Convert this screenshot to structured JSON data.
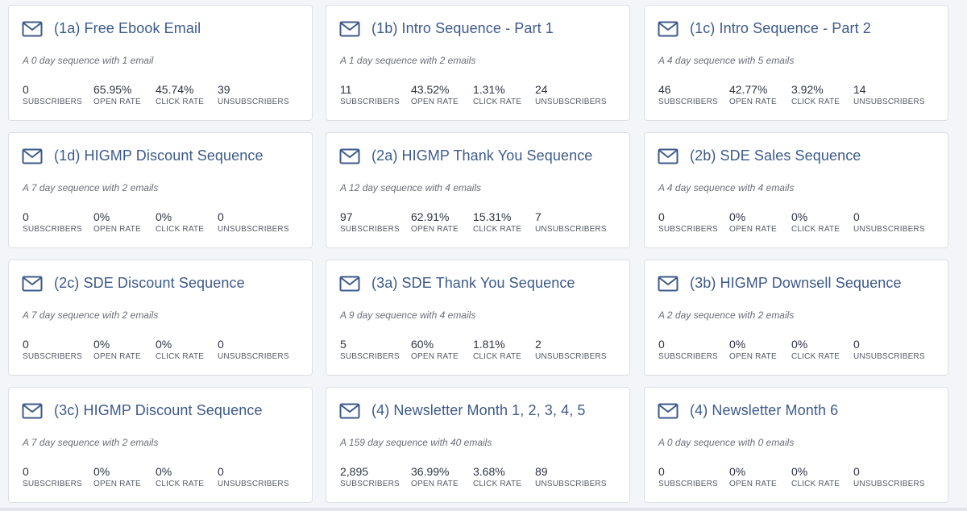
{
  "labels": {
    "subscribers": "SUBSCRIBERS",
    "open_rate": "OPEN RATE",
    "click_rate": "CLICK RATE",
    "unsubscribers": "UNSUBSCRIBERS"
  },
  "icon": "mail-icon",
  "accent_color": "#3d5a8a",
  "sequences": [
    {
      "title": "(1a) Free Ebook Email",
      "desc": "A 0 day sequence with 1 email",
      "subscribers": "0",
      "open_rate": "65.95%",
      "click_rate": "45.74%",
      "unsubscribers": "39"
    },
    {
      "title": "(1b) Intro Sequence - Part 1",
      "desc": "A 1 day sequence with 2 emails",
      "subscribers": "11",
      "open_rate": "43.52%",
      "click_rate": "1.31%",
      "unsubscribers": "24"
    },
    {
      "title": "(1c) Intro Sequence - Part 2",
      "desc": "A 4 day sequence with 5 emails",
      "subscribers": "46",
      "open_rate": "42.77%",
      "click_rate": "3.92%",
      "unsubscribers": "14"
    },
    {
      "title": "(1d) HIGMP Discount Sequence",
      "desc": "A 7 day sequence with 2 emails",
      "subscribers": "0",
      "open_rate": "0%",
      "click_rate": "0%",
      "unsubscribers": "0"
    },
    {
      "title": "(2a) HIGMP Thank You Sequence",
      "desc": "A 12 day sequence with 4 emails",
      "subscribers": "97",
      "open_rate": "62.91%",
      "click_rate": "15.31%",
      "unsubscribers": "7"
    },
    {
      "title": "(2b) SDE Sales Sequence",
      "desc": "A 4 day sequence with 4 emails",
      "subscribers": "0",
      "open_rate": "0%",
      "click_rate": "0%",
      "unsubscribers": "0"
    },
    {
      "title": "(2c) SDE Discount Sequence",
      "desc": "A 7 day sequence with 2 emails",
      "subscribers": "0",
      "open_rate": "0%",
      "click_rate": "0%",
      "unsubscribers": "0"
    },
    {
      "title": "(3a) SDE Thank You Sequence",
      "desc": "A 9 day sequence with 4 emails",
      "subscribers": "5",
      "open_rate": "60%",
      "click_rate": "1.81%",
      "unsubscribers": "2"
    },
    {
      "title": "(3b) HIGMP Downsell Sequence",
      "desc": "A 2 day sequence with 2 emails",
      "subscribers": "0",
      "open_rate": "0%",
      "click_rate": "0%",
      "unsubscribers": "0"
    },
    {
      "title": "(3c) HIGMP Discount Sequence",
      "desc": "A 7 day sequence with 2 emails",
      "subscribers": "0",
      "open_rate": "0%",
      "click_rate": "0%",
      "unsubscribers": "0"
    },
    {
      "title": "(4) Newsletter Month 1, 2, 3, 4, 5",
      "desc": "A 159 day sequence with 40 emails",
      "subscribers": "2,895",
      "open_rate": "36.99%",
      "click_rate": "3.68%",
      "unsubscribers": "89"
    },
    {
      "title": "(4) Newsletter Month 6",
      "desc": "A 0 day sequence with 0 emails",
      "subscribers": "0",
      "open_rate": "0%",
      "click_rate": "0%",
      "unsubscribers": "0"
    }
  ]
}
